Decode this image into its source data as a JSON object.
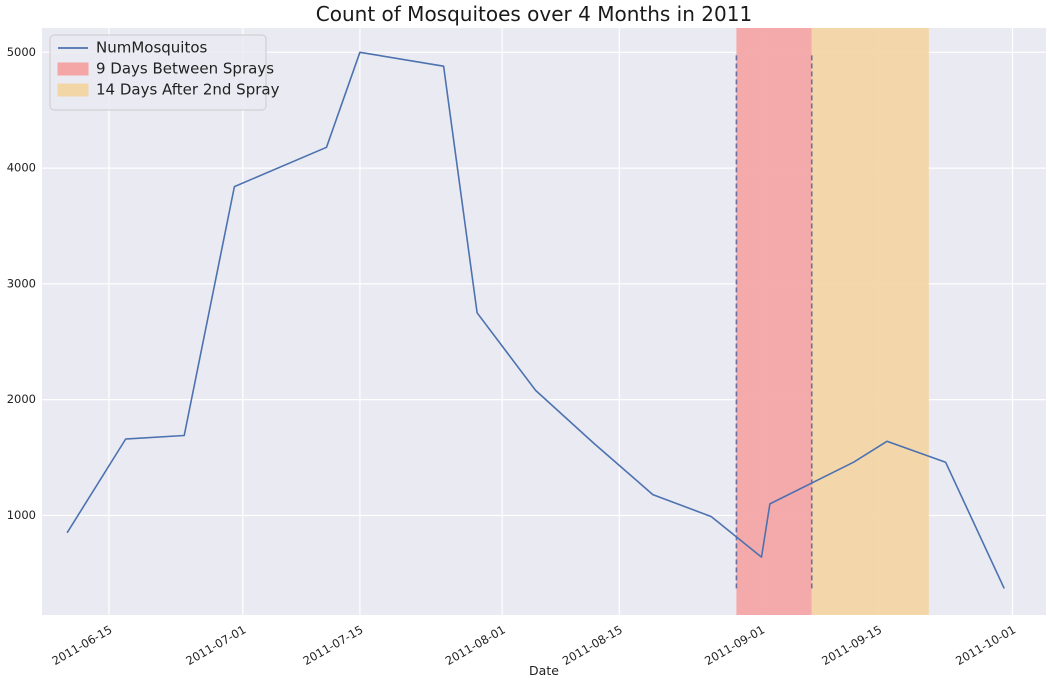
{
  "chart_data": {
    "type": "line",
    "title": "Count of Mosquitoes over 4 Months in 2011",
    "xlabel": "Date",
    "ylabel": "",
    "x_type": "date",
    "xlim": [
      "2011-06-07",
      "2011-10-05"
    ],
    "ylim": [
      140,
      5210
    ],
    "x_ticks": [
      "2011-06-15",
      "2011-07-01",
      "2011-07-15",
      "2011-08-01",
      "2011-08-15",
      "2011-09-01",
      "2011-09-15",
      "2011-10-01"
    ],
    "y_ticks": [
      1000,
      2000,
      3000,
      4000,
      5000
    ],
    "grid": true,
    "legend_position": "top-left",
    "series": [
      {
        "name": "NumMosquitos",
        "color": "#4c72b0",
        "x": [
          "2011-06-10",
          "2011-06-17",
          "2011-06-24",
          "2011-06-30",
          "2011-07-11",
          "2011-07-15",
          "2011-07-25",
          "2011-07-29",
          "2011-08-05",
          "2011-08-12",
          "2011-08-19",
          "2011-08-26",
          "2011-09-01",
          "2011-09-02",
          "2011-09-12",
          "2011-09-16",
          "2011-09-23",
          "2011-09-30"
        ],
        "y": [
          850,
          1660,
          1690,
          3840,
          4180,
          5000,
          4880,
          2750,
          2080,
          1620,
          1180,
          990,
          640,
          1100,
          1460,
          1640,
          1460,
          370
        ]
      }
    ],
    "spans": [
      {
        "name": "9 Days Between Sprays",
        "start": "2011-08-29",
        "end": "2011-09-07",
        "color": "#f4a6a6"
      },
      {
        "name": "14 Days After 2nd Spray",
        "start": "2011-09-07",
        "end": "2011-09-21",
        "color": "#f3d6a6"
      }
    ],
    "vlines": [
      {
        "x": "2011-08-29",
        "ymin": 370,
        "ymax": 5000,
        "style": "dashed",
        "color": "#6a6f9e"
      },
      {
        "x": "2011-09-07",
        "ymin": 370,
        "ymax": 5000,
        "style": "dashed",
        "color": "#6a6f9e"
      }
    ],
    "background": "#eaeaf2",
    "grid_color": "#ffffff"
  }
}
